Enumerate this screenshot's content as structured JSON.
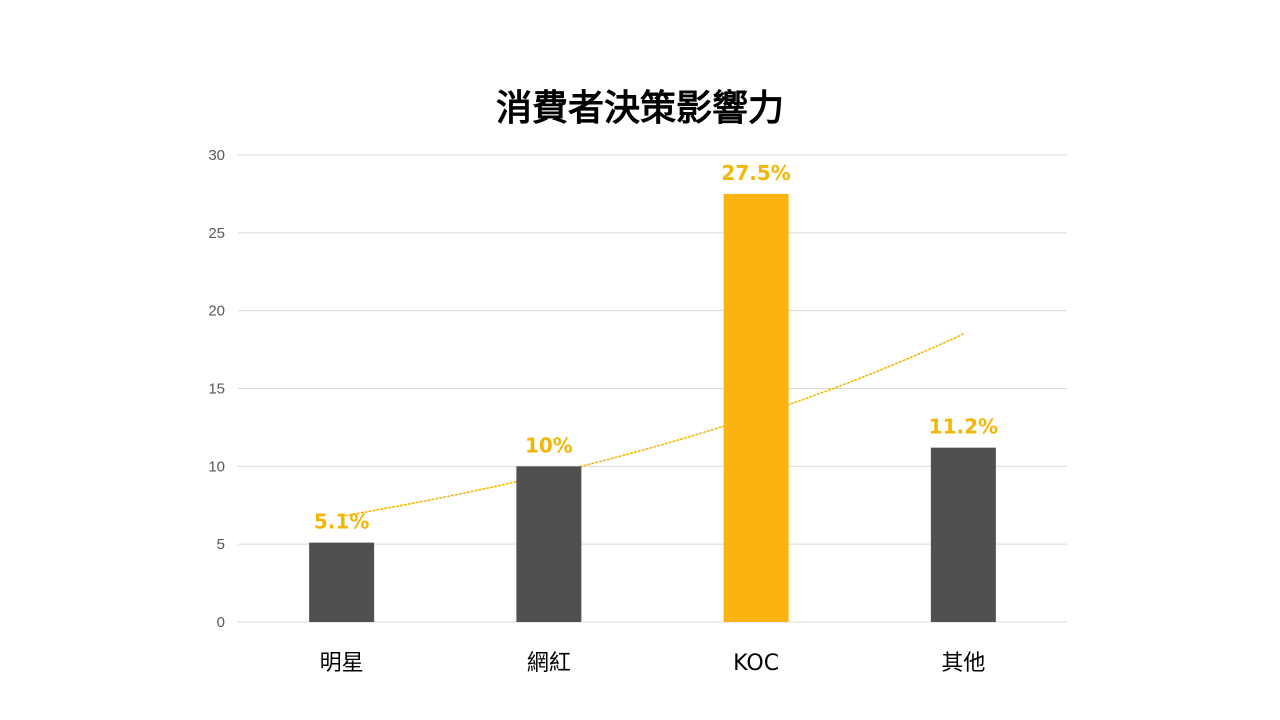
{
  "chart_data": {
    "type": "bar",
    "title": "消費者決策影響力",
    "categories": [
      "明星",
      "網紅",
      "KOC",
      "其他"
    ],
    "values": [
      5.1,
      10,
      27.5,
      11.2
    ],
    "data_labels": [
      "5.1%",
      "10%",
      "27.5%",
      "11.2%"
    ],
    "bar_colors": [
      "#505050",
      "#505050",
      "#FBB40F",
      "#505050"
    ],
    "label_color": "#F2B705",
    "ylim": [
      0,
      30
    ],
    "yticks": [
      0,
      5,
      10,
      15,
      20,
      25,
      30
    ],
    "ytick_labels": [
      "0",
      "5",
      "10",
      "15",
      "20",
      "25",
      "30"
    ],
    "grid": true,
    "trendline": {
      "type": "exponential",
      "style": "dotted",
      "color": "#F2B705",
      "start_value": 6.8,
      "end_value": 18.5
    },
    "xlabel": "",
    "ylabel": ""
  }
}
